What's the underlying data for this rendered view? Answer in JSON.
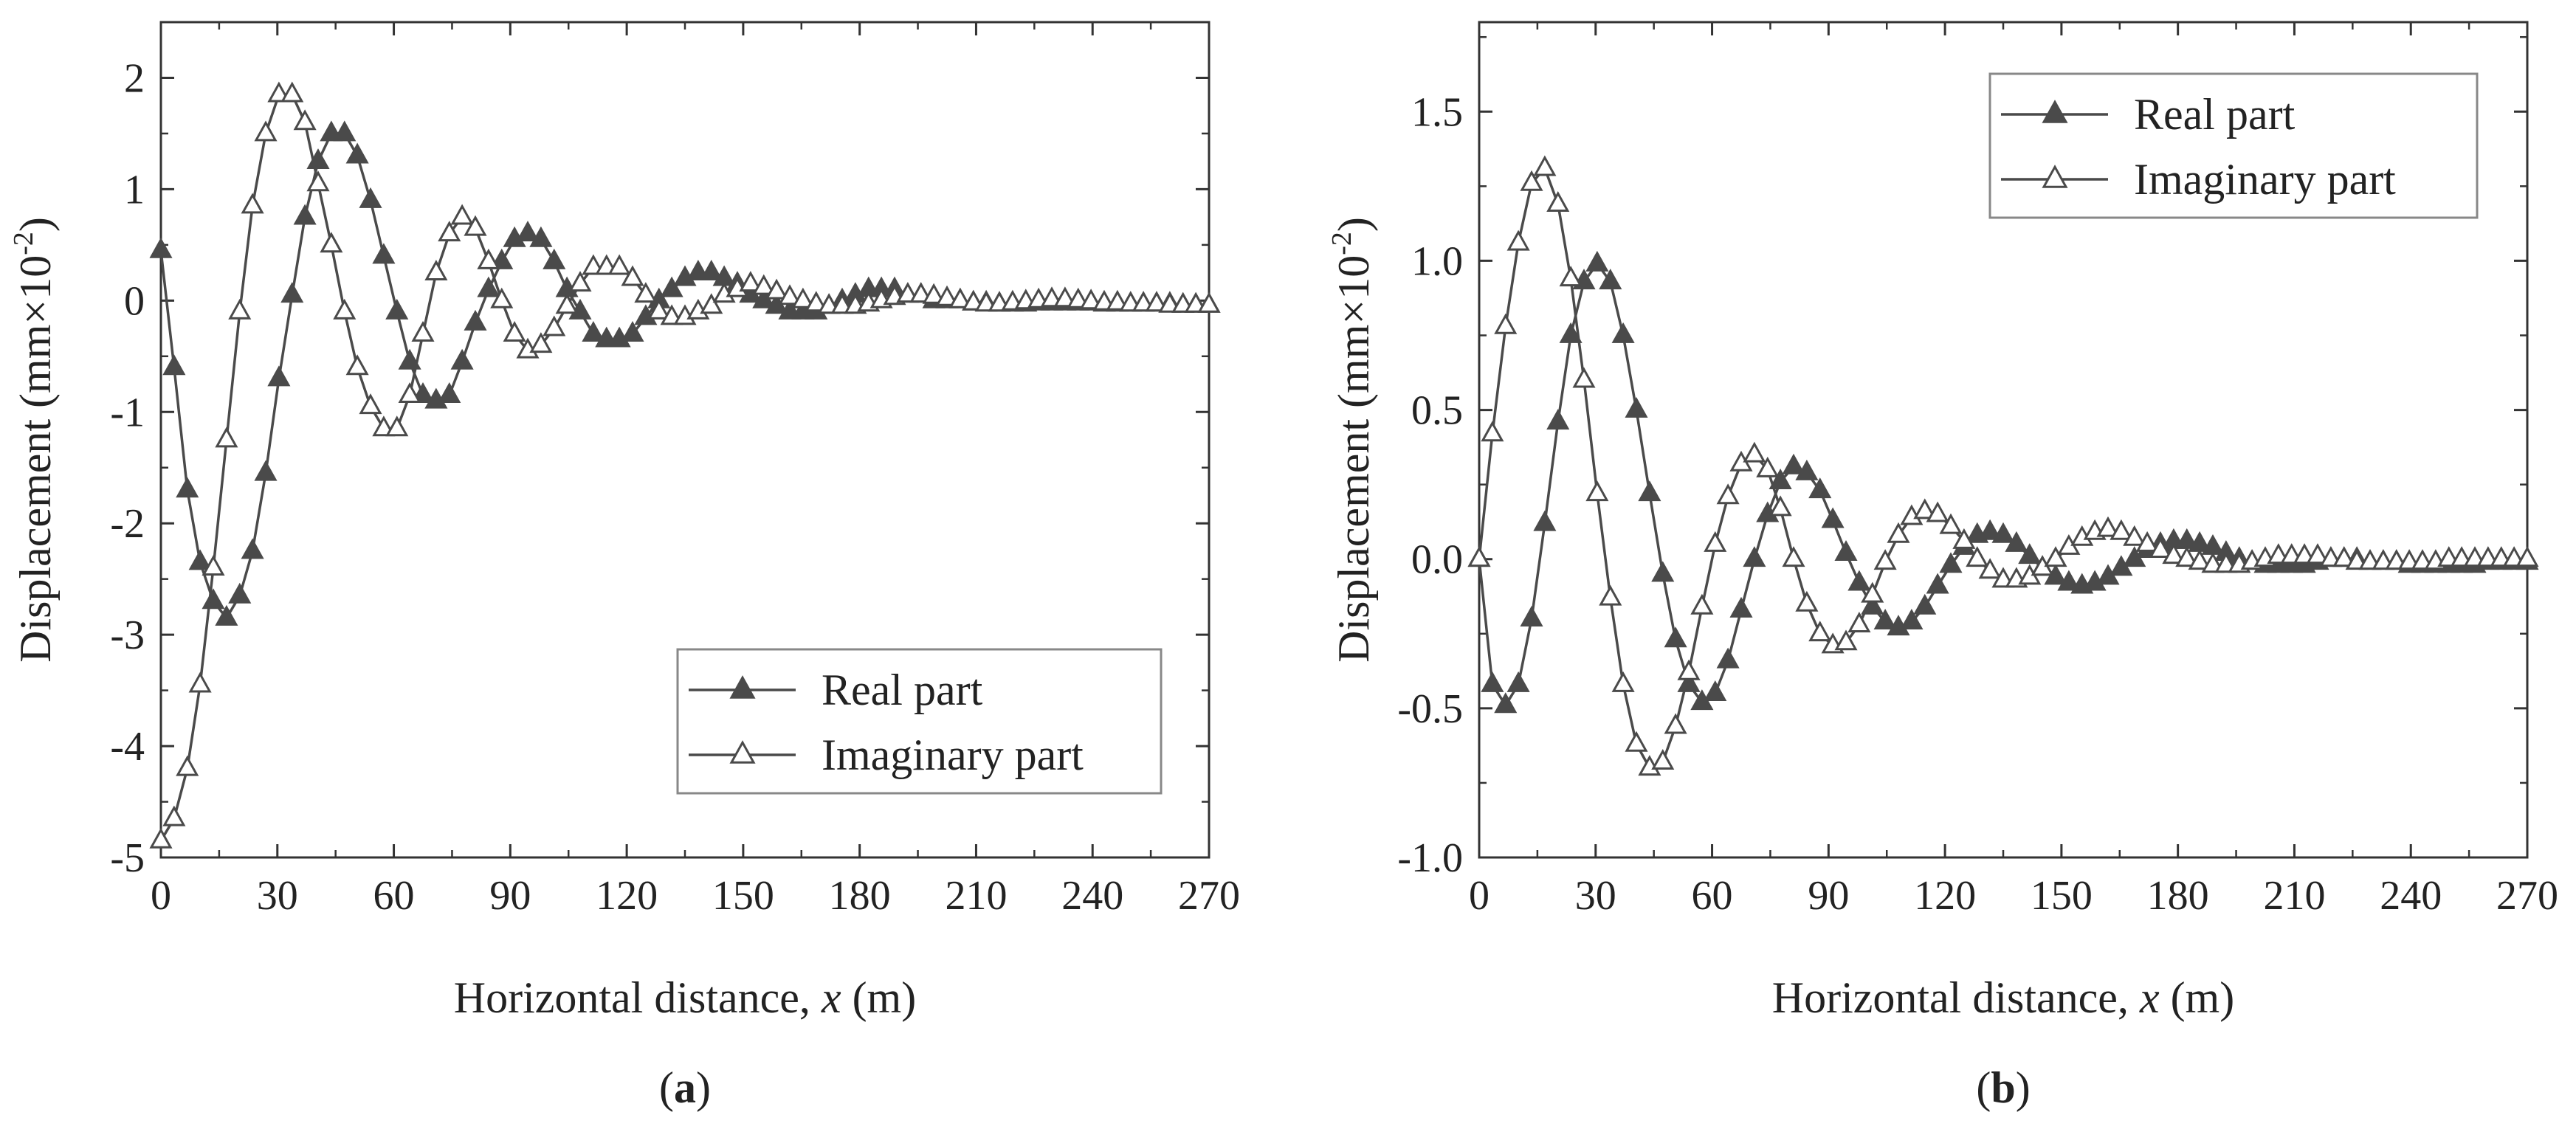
{
  "chart_data": [
    {
      "panel": "(a)",
      "panel_letter": "a",
      "type": "line",
      "title": "",
      "xlabel_prefix": "Horizontal distance, ",
      "xlabel_var": "x",
      "xlabel_suffix": " (m)",
      "ylabel": "Displacement (mm×10",
      "ylabel_exp": "-2",
      "ylabel_close": ")",
      "xlim": [
        0,
        270
      ],
      "ylim": [
        -5,
        2.5
      ],
      "xticks": [
        0,
        30,
        60,
        90,
        120,
        150,
        180,
        210,
        240,
        270
      ],
      "xtick_labels": [
        "0",
        "30",
        "60",
        "90",
        "120",
        "150",
        "180",
        "210",
        "240",
        "270"
      ],
      "yticks": [
        -5,
        -4,
        -3,
        -2,
        -1,
        0,
        1,
        2
      ],
      "ytick_labels": [
        "-5",
        "-4",
        "-3",
        "-2",
        "-1",
        "0",
        "1",
        "2"
      ],
      "legend_position": "bottom-right",
      "series": [
        {
          "name": "Real part",
          "marker": "filled-triangle",
          "x": [
            0,
            3.4,
            6.8,
            10.1,
            13.5,
            16.9,
            20.3,
            23.6,
            27,
            30.4,
            33.8,
            37.1,
            40.5,
            43.9,
            47.3,
            50.6,
            54,
            57.4,
            60.8,
            64.1,
            67.5,
            70.9,
            74.3,
            77.6,
            81,
            84.4,
            87.8,
            91.1,
            94.5,
            97.9,
            101.3,
            104.6,
            108,
            111.4,
            114.8,
            118.1,
            121.5,
            124.9,
            128.3,
            131.6,
            135,
            138.4,
            141.8,
            145.1,
            148.5,
            151.9,
            155.3,
            158.6,
            162,
            165.4,
            168.8,
            172.1,
            175.5,
            178.9,
            182.3,
            185.6,
            189,
            192.4,
            195.8,
            199.1,
            202.5,
            205.9,
            209.3,
            212.6,
            216,
            219.4,
            222.8,
            226.1,
            229.5,
            232.9,
            236.3,
            239.6,
            243,
            246.4,
            249.8,
            253.1,
            256.5,
            259.9,
            263.3,
            266.6,
            270
          ],
          "y": [
            0.45,
            -0.6,
            -1.7,
            -2.35,
            -2.7,
            -2.85,
            -2.65,
            -2.25,
            -1.55,
            -0.7,
            0.05,
            0.75,
            1.25,
            1.5,
            1.5,
            1.3,
            0.9,
            0.4,
            -0.1,
            -0.55,
            -0.85,
            -0.9,
            -0.85,
            -0.55,
            -0.2,
            0.1,
            0.35,
            0.55,
            0.6,
            0.55,
            0.35,
            0.1,
            -0.1,
            -0.3,
            -0.35,
            -0.35,
            -0.3,
            -0.15,
            0.0,
            0.1,
            0.2,
            0.25,
            0.25,
            0.2,
            0.15,
            0.05,
            0.0,
            -0.05,
            -0.1,
            -0.1,
            -0.1,
            -0.05,
            0.0,
            0.05,
            0.1,
            0.1,
            0.1,
            0.05,
            0.05,
            0.0,
            0.0,
            0.0,
            -0.02,
            -0.02,
            -0.03,
            -0.03,
            -0.03,
            -0.02,
            -0.02,
            -0.02,
            -0.02,
            -0.02,
            -0.03,
            -0.03,
            -0.03,
            -0.03,
            -0.03,
            -0.03,
            -0.04,
            -0.04,
            -0.04
          ]
        },
        {
          "name": "Imaginary part",
          "marker": "hollow-triangle",
          "x": [
            0,
            3.4,
            6.8,
            10.1,
            13.5,
            16.9,
            20.3,
            23.6,
            27,
            30.4,
            33.8,
            37.1,
            40.5,
            43.9,
            47.3,
            50.6,
            54,
            57.4,
            60.8,
            64.1,
            67.5,
            70.9,
            74.3,
            77.6,
            81,
            84.4,
            87.8,
            91.1,
            94.5,
            97.9,
            101.3,
            104.6,
            108,
            111.4,
            114.8,
            118.1,
            121.5,
            124.9,
            128.3,
            131.6,
            135,
            138.4,
            141.8,
            145.1,
            148.5,
            151.9,
            155.3,
            158.6,
            162,
            165.4,
            168.8,
            172.1,
            175.5,
            178.9,
            182.3,
            185.6,
            189,
            192.4,
            195.8,
            199.1,
            202.5,
            205.9,
            209.3,
            212.6,
            216,
            219.4,
            222.8,
            226.1,
            229.5,
            232.9,
            236.3,
            239.6,
            243,
            246.4,
            249.8,
            253.1,
            256.5,
            259.9,
            263.3,
            266.6,
            270
          ],
          "y": [
            -4.85,
            -4.65,
            -4.2,
            -3.45,
            -2.4,
            -1.25,
            -0.1,
            0.85,
            1.5,
            1.85,
            1.85,
            1.6,
            1.05,
            0.5,
            -0.1,
            -0.6,
            -0.95,
            -1.15,
            -1.15,
            -0.85,
            -0.3,
            0.25,
            0.6,
            0.75,
            0.65,
            0.35,
            0.0,
            -0.3,
            -0.45,
            -0.4,
            -0.25,
            -0.05,
            0.15,
            0.3,
            0.3,
            0.3,
            0.2,
            0.05,
            -0.1,
            -0.15,
            -0.15,
            -0.1,
            -0.05,
            0.05,
            0.1,
            0.15,
            0.12,
            0.08,
            0.03,
            0.0,
            -0.03,
            -0.05,
            -0.05,
            -0.05,
            -0.03,
            0.0,
            0.03,
            0.05,
            0.05,
            0.04,
            0.02,
            0.0,
            -0.02,
            -0.03,
            -0.03,
            -0.02,
            -0.01,
            0.0,
            0.01,
            0.01,
            0.0,
            -0.01,
            -0.02,
            -0.02,
            -0.03,
            -0.03,
            -0.03,
            -0.04,
            -0.04,
            -0.04,
            -0.04
          ]
        }
      ]
    },
    {
      "panel": "(b)",
      "panel_letter": "b",
      "type": "line",
      "title": "",
      "xlabel_prefix": "Horizontal distance, ",
      "xlabel_var": "x",
      "xlabel_suffix": " (m)",
      "ylabel": "Displacement (mm×10",
      "ylabel_exp": "-2",
      "ylabel_close": ")",
      "xlim": [
        0,
        270
      ],
      "ylim": [
        -1.0,
        1.8
      ],
      "xticks": [
        0,
        30,
        60,
        90,
        120,
        150,
        180,
        210,
        240,
        270
      ],
      "xtick_labels": [
        "0",
        "30",
        "60",
        "90",
        "120",
        "150",
        "180",
        "210",
        "240",
        "270"
      ],
      "yticks": [
        -1.0,
        -0.5,
        0.0,
        0.5,
        1.0,
        1.5
      ],
      "ytick_labels": [
        "-1.0",
        "-0.5",
        "0.0",
        "0.5",
        "1.0",
        "1.5"
      ],
      "legend_position": "top-right",
      "series": [
        {
          "name": "Real part",
          "marker": "filled-triangle",
          "x": [
            0,
            3.4,
            6.8,
            10.1,
            13.5,
            16.9,
            20.3,
            23.6,
            27,
            30.4,
            33.8,
            37.1,
            40.5,
            43.9,
            47.3,
            50.6,
            54,
            57.4,
            60.8,
            64.1,
            67.5,
            70.9,
            74.3,
            77.6,
            81,
            84.4,
            87.8,
            91.1,
            94.5,
            97.9,
            101.3,
            104.6,
            108,
            111.4,
            114.8,
            118.1,
            121.5,
            124.9,
            128.3,
            131.6,
            135,
            138.4,
            141.8,
            145.1,
            148.5,
            151.9,
            155.3,
            158.6,
            162,
            165.4,
            168.8,
            172.1,
            175.5,
            178.9,
            182.3,
            185.6,
            189,
            192.4,
            195.8,
            199.1,
            202.5,
            205.9,
            209.3,
            212.6,
            216,
            219.4,
            222.8,
            226.1,
            229.5,
            232.9,
            236.3,
            239.6,
            243,
            246.4,
            249.8,
            253.1,
            256.5,
            259.9,
            263.3,
            266.6,
            270
          ],
          "y": [
            0.0,
            -0.42,
            -0.49,
            -0.42,
            -0.2,
            0.12,
            0.46,
            0.75,
            0.93,
            0.99,
            0.93,
            0.75,
            0.5,
            0.22,
            -0.05,
            -0.27,
            -0.42,
            -0.48,
            -0.45,
            -0.34,
            -0.17,
            0.0,
            0.15,
            0.26,
            0.31,
            0.29,
            0.23,
            0.13,
            0.02,
            -0.08,
            -0.16,
            -0.21,
            -0.23,
            -0.21,
            -0.16,
            -0.09,
            -0.02,
            0.04,
            0.08,
            0.09,
            0.08,
            0.05,
            0.01,
            -0.03,
            -0.06,
            -0.08,
            -0.09,
            -0.08,
            -0.06,
            -0.03,
            0.0,
            0.03,
            0.05,
            0.06,
            0.06,
            0.05,
            0.04,
            0.02,
            0.0,
            -0.01,
            -0.02,
            -0.02,
            -0.02,
            -0.02,
            -0.01,
            0.0,
            0.0,
            0.0,
            -0.01,
            -0.01,
            -0.01,
            -0.02,
            -0.02,
            -0.02,
            -0.02,
            -0.02,
            -0.02,
            -0.01,
            -0.01,
            -0.01,
            -0.01
          ]
        },
        {
          "name": "Imaginary part",
          "marker": "hollow-triangle",
          "x": [
            0,
            3.4,
            6.8,
            10.1,
            13.5,
            16.9,
            20.3,
            23.6,
            27,
            30.4,
            33.8,
            37.1,
            40.5,
            43.9,
            47.3,
            50.6,
            54,
            57.4,
            60.8,
            64.1,
            67.5,
            70.9,
            74.3,
            77.6,
            81,
            84.4,
            87.8,
            91.1,
            94.5,
            97.9,
            101.3,
            104.6,
            108,
            111.4,
            114.8,
            118.1,
            121.5,
            124.9,
            128.3,
            131.6,
            135,
            138.4,
            141.8,
            145.1,
            148.5,
            151.9,
            155.3,
            158.6,
            162,
            165.4,
            168.8,
            172.1,
            175.5,
            178.9,
            182.3,
            185.6,
            189,
            192.4,
            195.8,
            199.1,
            202.5,
            205.9,
            209.3,
            212.6,
            216,
            219.4,
            222.8,
            226.1,
            229.5,
            232.9,
            236.3,
            239.6,
            243,
            246.4,
            249.8,
            253.1,
            256.5,
            259.9,
            263.3,
            266.6,
            270
          ],
          "y": [
            0.0,
            0.42,
            0.78,
            1.06,
            1.26,
            1.31,
            1.19,
            0.94,
            0.6,
            0.22,
            -0.13,
            -0.42,
            -0.62,
            -0.7,
            -0.68,
            -0.56,
            -0.38,
            -0.16,
            0.05,
            0.21,
            0.32,
            0.35,
            0.3,
            0.17,
            0.0,
            -0.15,
            -0.25,
            -0.29,
            -0.28,
            -0.22,
            -0.12,
            -0.01,
            0.08,
            0.14,
            0.16,
            0.15,
            0.11,
            0.06,
            0.0,
            -0.04,
            -0.07,
            -0.07,
            -0.06,
            -0.03,
            0.0,
            0.04,
            0.07,
            0.09,
            0.1,
            0.09,
            0.07,
            0.05,
            0.03,
            0.01,
            0.0,
            -0.01,
            -0.02,
            -0.02,
            -0.02,
            -0.01,
            0.0,
            0.01,
            0.01,
            0.01,
            0.01,
            0.0,
            0.0,
            -0.01,
            -0.01,
            -0.01,
            -0.01,
            -0.01,
            -0.01,
            -0.01,
            0.0,
            0.0,
            0.0,
            0.0,
            0.0,
            0.0,
            0.0
          ]
        }
      ]
    }
  ]
}
